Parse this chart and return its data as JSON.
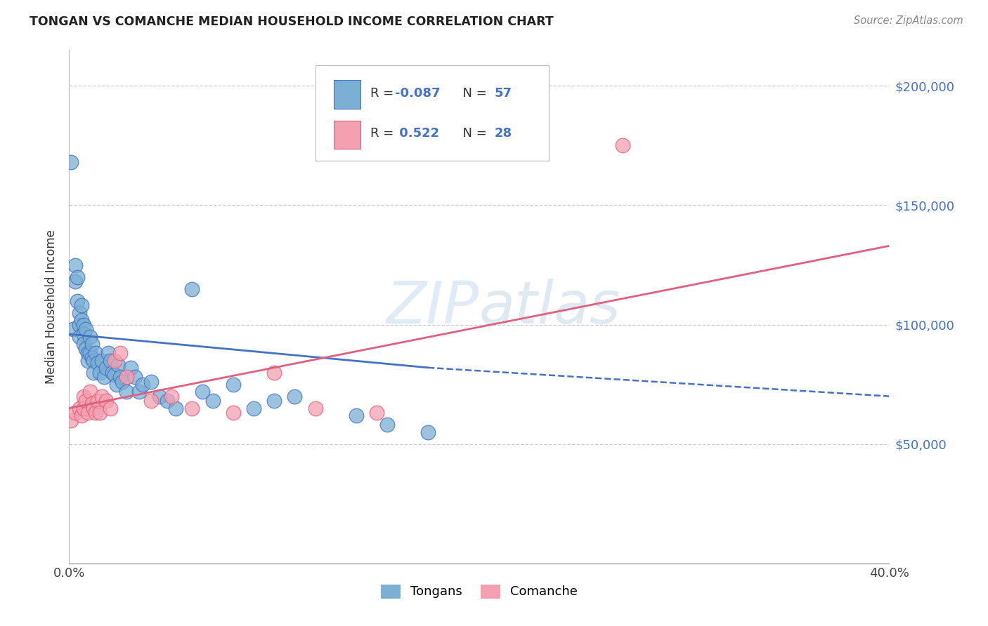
{
  "title": "TONGAN VS COMANCHE MEDIAN HOUSEHOLD INCOME CORRELATION CHART",
  "source": "Source: ZipAtlas.com",
  "ylabel": "Median Household Income",
  "watermark": "ZIPatlas",
  "legend_label1": "Tongans",
  "legend_label2": "Comanche",
  "R1": -0.087,
  "N1": 57,
  "R2": 0.522,
  "N2": 28,
  "xlim": [
    0.0,
    0.4
  ],
  "ylim": [
    0,
    215000
  ],
  "color_tongan": "#7BAFD4",
  "color_comanche": "#F4A0B0",
  "color_line_tongan": "#4472C4",
  "color_line_comanche": "#E06080",
  "color_text_blue": "#4472C4",
  "background_color": "#FFFFFF",
  "tongan_x": [
    0.001,
    0.002,
    0.003,
    0.003,
    0.004,
    0.004,
    0.005,
    0.005,
    0.005,
    0.006,
    0.006,
    0.007,
    0.007,
    0.007,
    0.008,
    0.008,
    0.009,
    0.009,
    0.01,
    0.01,
    0.011,
    0.011,
    0.012,
    0.012,
    0.013,
    0.014,
    0.015,
    0.016,
    0.017,
    0.018,
    0.019,
    0.02,
    0.021,
    0.022,
    0.023,
    0.024,
    0.025,
    0.026,
    0.028,
    0.03,
    0.032,
    0.034,
    0.036,
    0.04,
    0.044,
    0.048,
    0.052,
    0.06,
    0.065,
    0.07,
    0.08,
    0.09,
    0.1,
    0.11,
    0.14,
    0.155,
    0.175
  ],
  "tongan_y": [
    168000,
    98000,
    125000,
    118000,
    120000,
    110000,
    105000,
    100000,
    95000,
    108000,
    102000,
    100000,
    96000,
    92000,
    98000,
    90000,
    88000,
    85000,
    95000,
    88000,
    92000,
    86000,
    85000,
    80000,
    88000,
    84000,
    80000,
    85000,
    78000,
    82000,
    88000,
    85000,
    80000,
    79000,
    75000,
    83000,
    78000,
    76000,
    72000,
    82000,
    78000,
    72000,
    75000,
    76000,
    70000,
    68000,
    65000,
    115000,
    72000,
    68000,
    75000,
    65000,
    68000,
    70000,
    62000,
    58000,
    55000
  ],
  "comanche_x": [
    0.001,
    0.003,
    0.005,
    0.006,
    0.007,
    0.007,
    0.008,
    0.009,
    0.01,
    0.011,
    0.012,
    0.013,
    0.014,
    0.015,
    0.016,
    0.018,
    0.02,
    0.022,
    0.025,
    0.028,
    0.04,
    0.05,
    0.06,
    0.08,
    0.1,
    0.12,
    0.15,
    0.27
  ],
  "comanche_y": [
    60000,
    63000,
    65000,
    62000,
    70000,
    65000,
    68000,
    63000,
    72000,
    67000,
    65000,
    63000,
    68000,
    63000,
    70000,
    68000,
    65000,
    85000,
    88000,
    78000,
    68000,
    70000,
    65000,
    63000,
    80000,
    65000,
    63000,
    175000
  ],
  "line_tongan_x0": 0.0,
  "line_tongan_y0": 96000,
  "line_tongan_x1": 0.175,
  "line_tongan_y1": 82000,
  "line_tongan_dash_x0": 0.175,
  "line_tongan_dash_y0": 82000,
  "line_tongan_dash_x1": 0.4,
  "line_tongan_dash_y1": 70000,
  "line_comanche_x0": 0.0,
  "line_comanche_y0": 65000,
  "line_comanche_x1": 0.4,
  "line_comanche_y1": 133000
}
